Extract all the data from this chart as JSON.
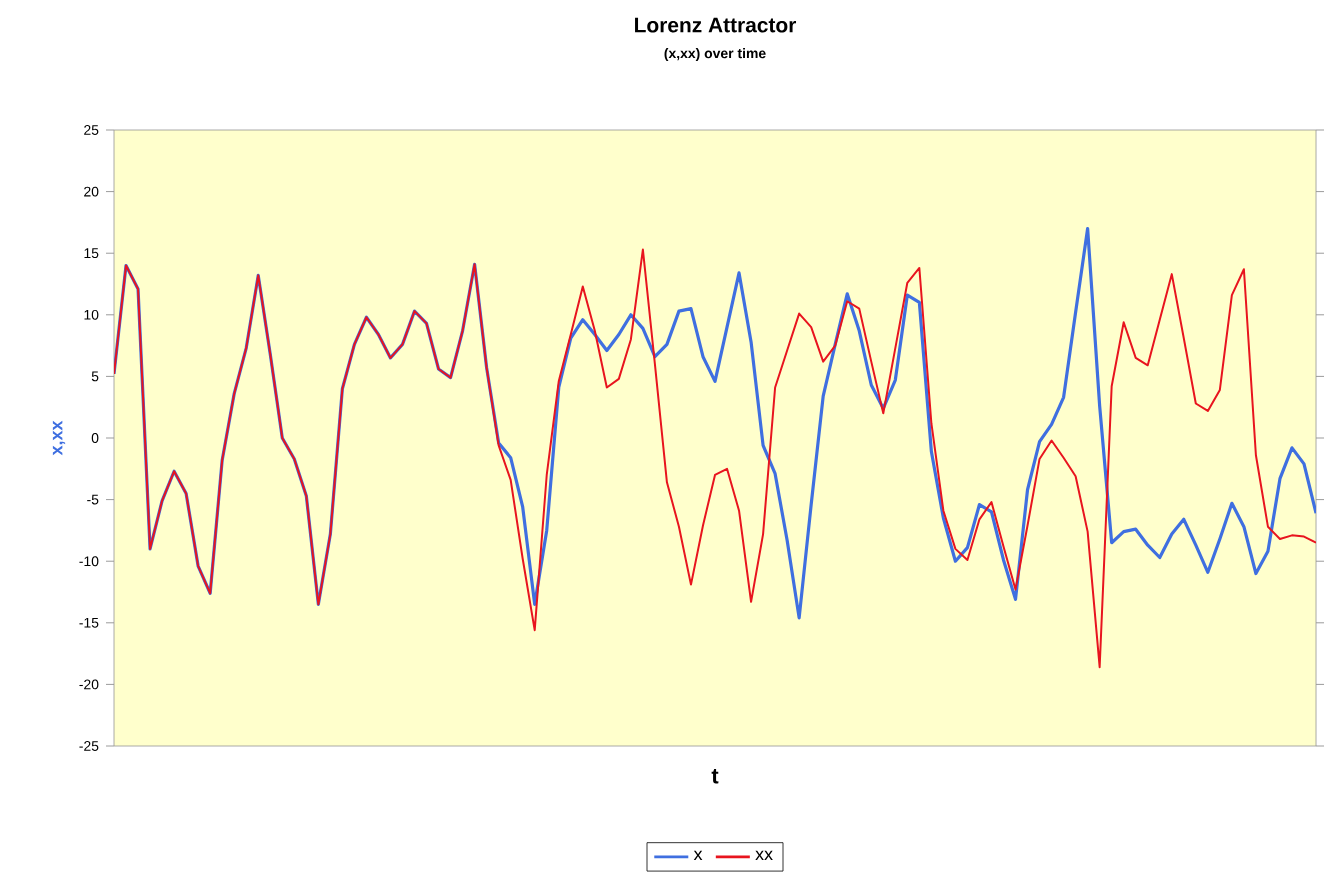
{
  "chart_data": {
    "type": "line",
    "title": "Lorenz Attractor",
    "subtitle": "(x,xx) over time",
    "xlabel": "t",
    "ylabel": "x,xx",
    "categories": [
      null,
      null,
      null,
      null,
      null,
      null,
      null,
      null,
      null,
      null,
      null,
      null,
      null,
      null,
      null,
      null,
      null,
      null,
      null,
      null,
      null,
      null,
      null,
      null,
      null,
      null,
      null,
      null,
      null,
      null,
      null,
      null,
      null,
      null,
      null,
      null,
      null,
      null,
      null,
      null,
      null,
      null,
      null,
      null,
      null,
      null,
      null,
      null,
      null,
      null,
      null,
      null,
      null,
      null,
      null,
      null,
      null,
      null,
      null,
      null,
      null,
      null,
      null,
      null,
      null,
      null,
      null,
      null,
      null,
      null,
      null,
      null,
      null,
      null,
      null,
      null,
      null,
      null,
      null,
      null,
      null,
      null,
      null,
      null,
      null,
      null,
      null,
      null,
      null,
      null,
      null,
      null,
      null,
      null,
      null,
      null,
      null,
      null,
      null,
      null,
      null
    ],
    "series": [
      {
        "name": "x",
        "color": "#3f6fe0",
        "values": [
          5.2,
          14.0,
          12.1,
          -9.0,
          -5.1,
          -2.7,
          -4.5,
          -10.4,
          -12.6,
          -1.8,
          3.6,
          7.3,
          13.2,
          6.8,
          0.0,
          -1.7,
          -4.7,
          -13.5,
          -7.8,
          4.0,
          7.6,
          9.8,
          8.4,
          6.5,
          7.6,
          10.3,
          9.3,
          5.6,
          4.9,
          8.7,
          14.1,
          5.7,
          -0.4,
          -1.6,
          -5.6,
          -13.5,
          -7.5,
          4.1,
          8.1,
          9.6,
          8.4,
          7.1,
          8.4,
          10.0,
          8.9,
          6.6,
          7.6,
          10.3,
          10.5,
          6.6,
          4.6,
          9.0,
          13.4,
          7.8,
          -0.6,
          -2.9,
          -8.3,
          -14.6,
          -5.4,
          3.4,
          7.6,
          11.7,
          8.7,
          4.3,
          2.4,
          4.7,
          11.6,
          11.0,
          -1.1,
          -6.5,
          -10.0,
          -8.9,
          -5.4,
          -6.0,
          -9.9,
          -13.1,
          -4.2,
          -0.3,
          1.1,
          3.3,
          10.2,
          17.0,
          2.6,
          -8.5,
          -7.6,
          -7.4,
          -8.7,
          -9.7,
          -7.8,
          -6.6,
          -8.7,
          -10.9,
          -8.2,
          -5.3,
          -7.2,
          -11.0,
          -9.2,
          -3.3,
          -0.8,
          -2.1,
          -6.1
        ]
      },
      {
        "name": "xx",
        "color": "#e8141e",
        "values": [
          5.2,
          14.0,
          12.1,
          -9.0,
          -5.1,
          -2.7,
          -4.5,
          -10.4,
          -12.6,
          -1.8,
          3.6,
          7.3,
          13.2,
          6.8,
          0.0,
          -1.7,
          -4.7,
          -13.5,
          -7.8,
          4.0,
          7.6,
          9.8,
          8.4,
          6.5,
          7.6,
          10.3,
          9.3,
          5.6,
          4.9,
          8.7,
          14.1,
          5.7,
          -0.6,
          -3.4,
          -9.8,
          -15.6,
          -3.0,
          4.6,
          8.4,
          12.3,
          8.7,
          4.1,
          4.8,
          8.0,
          15.3,
          6.0,
          -3.6,
          -7.2,
          -11.9,
          -7.1,
          -3.0,
          -2.5,
          -5.9,
          -13.3,
          -7.8,
          4.1,
          7.1,
          10.1,
          9.0,
          6.2,
          7.5,
          11.1,
          10.5,
          6.2,
          2.0,
          7.3,
          12.6,
          13.8,
          1.2,
          -5.9,
          -9.0,
          -9.9,
          -6.6,
          -5.2,
          -8.8,
          -12.3,
          -7.1,
          -1.7,
          -0.2,
          -1.6,
          -3.1,
          -7.6,
          -18.6,
          4.2,
          9.4,
          6.5,
          5.9,
          9.6,
          13.3,
          8.1,
          2.8,
          2.2,
          3.9,
          11.6,
          13.7,
          -1.4,
          -7.2,
          -8.2,
          -7.9,
          -8.0,
          -8.5
        ]
      }
    ],
    "ylim": [
      -25,
      25
    ],
    "yticks": [
      -25,
      -20,
      -15,
      -10,
      -5,
      0,
      5,
      10,
      15,
      20,
      25
    ],
    "legend": "bottom"
  }
}
